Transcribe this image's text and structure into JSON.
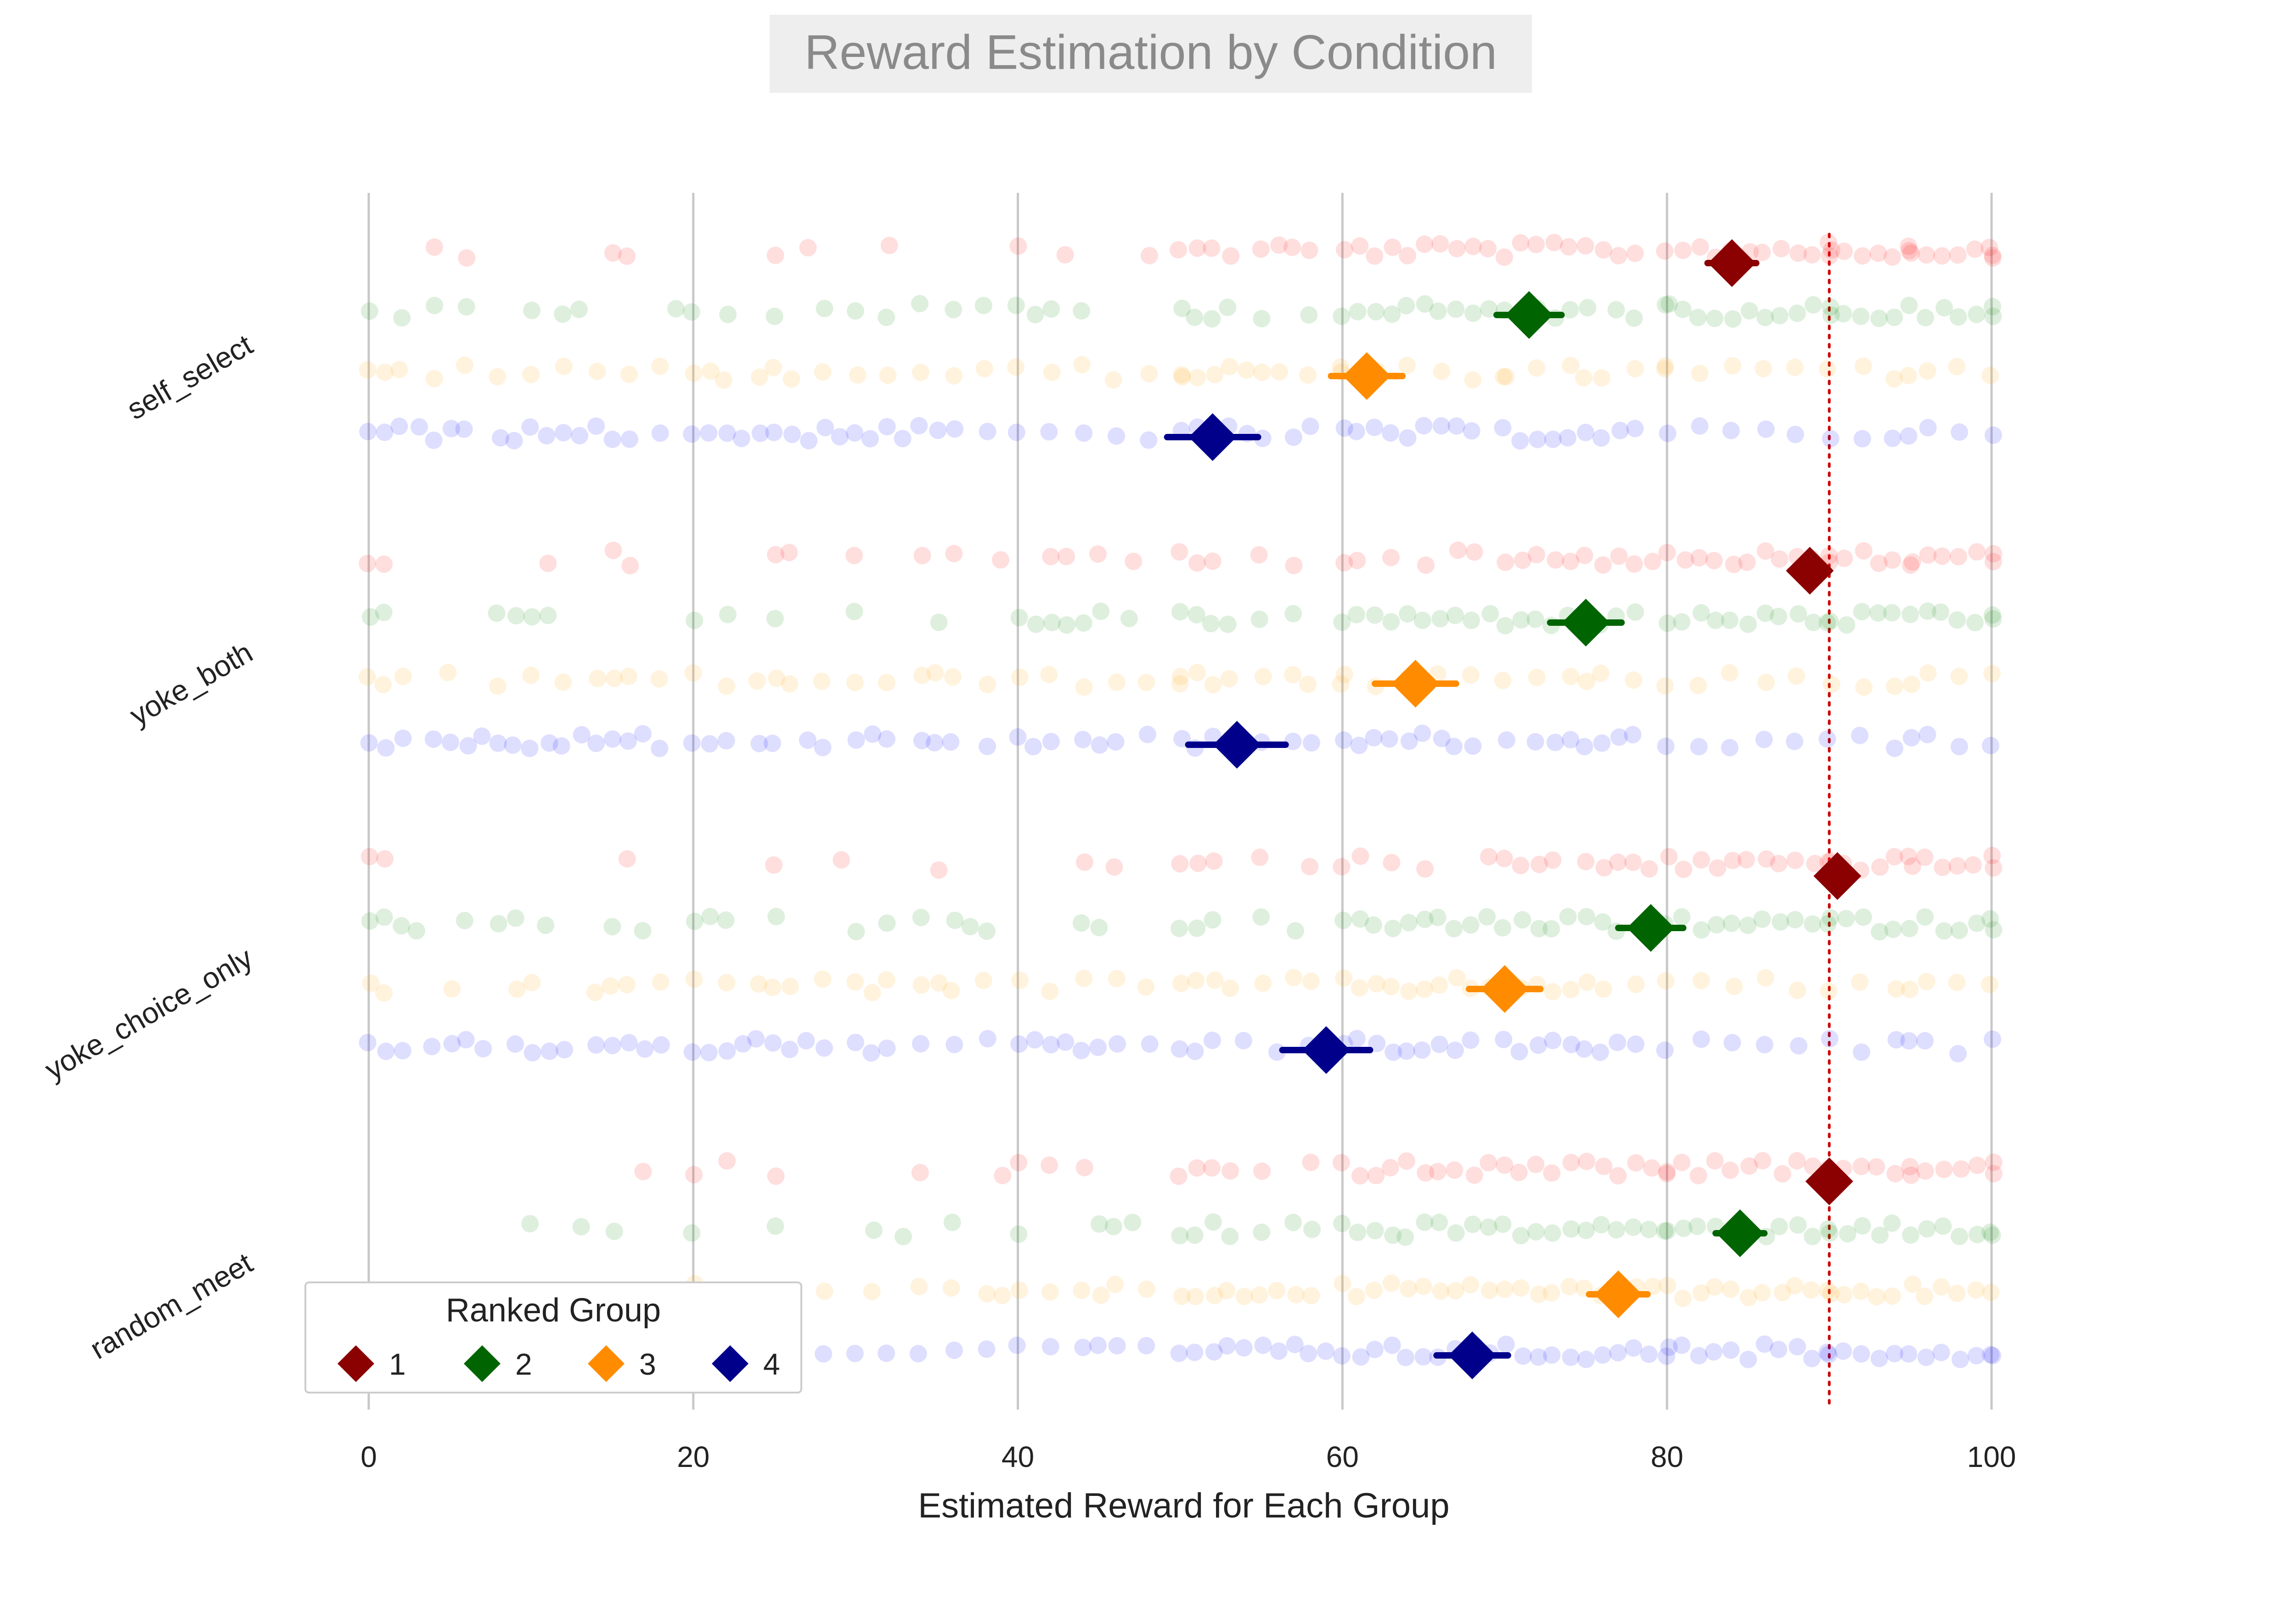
{
  "chart_data": {
    "type": "scatter",
    "title": "Reward Estimation by Condition",
    "xlabel": "Estimated Reward for Each Group",
    "ylabel": "",
    "xlim": [
      0,
      100
    ],
    "xticks": [
      0,
      20,
      40,
      60,
      80,
      100
    ],
    "grid": "vertical",
    "reference_line": {
      "x": 90,
      "color": "#cc0000",
      "style": "dotted"
    },
    "conditions": [
      "self_select",
      "yoke_both",
      "yoke_choice_only",
      "random_meet"
    ],
    "legend": {
      "title": "Ranked Group",
      "placement": "bottom-left",
      "entries": [
        {
          "label": "1",
          "color": "#8b0000"
        },
        {
          "label": "2",
          "color": "#006400"
        },
        {
          "label": "3",
          "color": "#ff8c00"
        },
        {
          "label": "4",
          "color": "#00008b"
        }
      ]
    },
    "point_colors": [
      "#ff0000",
      "#008000",
      "#ffa500",
      "#0000ff"
    ],
    "series": [
      {
        "group": "1",
        "means": [
          84.0,
          88.8,
          90.5,
          90.0
        ],
        "ci_halfwidth": [
          1.5,
          1.2,
          1.0,
          1.0
        ]
      },
      {
        "group": "2",
        "means": [
          71.5,
          75.0,
          79.0,
          84.5
        ],
        "ci_halfwidth": [
          2.0,
          2.2,
          2.0,
          1.5
        ]
      },
      {
        "group": "3",
        "means": [
          61.5,
          64.5,
          70.0,
          77.0
        ],
        "ci_halfwidth": [
          2.2,
          2.5,
          2.2,
          1.8
        ]
      },
      {
        "group": "4",
        "means": [
          52.0,
          53.5,
          59.0,
          68.0
        ],
        "ci_halfwidth": [
          2.8,
          3.0,
          2.7,
          2.2
        ]
      }
    ],
    "raw_points": {
      "self_select": {
        "1": [
          4,
          6,
          15,
          16,
          25,
          27,
          32,
          40,
          43,
          48,
          50,
          51,
          52,
          53,
          55,
          56,
          57,
          58,
          60,
          61,
          62,
          63,
          64,
          65,
          66,
          67,
          68,
          69,
          70,
          71,
          72,
          73,
          74,
          75,
          76,
          77,
          78,
          80,
          81,
          82,
          83,
          84,
          85,
          86,
          87,
          88,
          89,
          90,
          91,
          92,
          93,
          94,
          95,
          96,
          97,
          98,
          99,
          100,
          100,
          100,
          90,
          90,
          95,
          95
        ],
        "2": [
          0,
          2,
          4,
          6,
          10,
          12,
          13,
          19,
          20,
          22,
          25,
          28,
          30,
          32,
          34,
          36,
          38,
          40,
          41,
          42,
          44,
          50,
          51,
          52,
          53,
          55,
          58,
          60,
          61,
          62,
          63,
          64,
          65,
          66,
          67,
          68,
          69,
          70,
          72,
          73,
          74,
          75,
          77,
          78,
          80,
          81,
          82,
          83,
          84,
          85,
          86,
          87,
          88,
          89,
          90,
          91,
          92,
          93,
          94,
          95,
          96,
          97,
          98,
          99,
          100,
          100,
          90,
          80
        ],
        "3": [
          0,
          1,
          2,
          4,
          6,
          8,
          10,
          12,
          14,
          16,
          18,
          20,
          21,
          22,
          24,
          25,
          26,
          28,
          30,
          32,
          34,
          36,
          38,
          40,
          42,
          44,
          46,
          48,
          50,
          51,
          52,
          53,
          54,
          55,
          56,
          58,
          60,
          62,
          64,
          66,
          68,
          70,
          72,
          74,
          75,
          76,
          78,
          80,
          82,
          84,
          86,
          88,
          90,
          92,
          94,
          95,
          96,
          98,
          100,
          50,
          60,
          70,
          80
        ],
        "4": [
          0,
          1,
          2,
          3,
          4,
          5,
          6,
          8,
          9,
          10,
          11,
          12,
          13,
          14,
          15,
          16,
          18,
          20,
          21,
          22,
          23,
          24,
          25,
          26,
          27,
          28,
          29,
          30,
          31,
          32,
          33,
          34,
          35,
          36,
          38,
          40,
          42,
          44,
          46,
          48,
          50,
          51,
          52,
          53,
          54,
          55,
          57,
          58,
          60,
          61,
          62,
          63,
          64,
          65,
          66,
          67,
          68,
          70,
          71,
          72,
          73,
          74,
          75,
          76,
          77,
          78,
          80,
          82,
          84,
          86,
          88,
          90,
          92,
          94,
          95,
          96,
          98,
          100
        ]
      },
      "yoke_both": {
        "1": [
          0,
          1,
          11,
          15,
          16,
          25,
          26,
          30,
          34,
          36,
          39,
          42,
          43,
          45,
          47,
          50,
          51,
          52,
          55,
          57,
          60,
          61,
          63,
          65,
          67,
          68,
          70,
          71,
          72,
          73,
          74,
          75,
          76,
          77,
          78,
          79,
          80,
          81,
          82,
          83,
          84,
          85,
          86,
          87,
          88,
          89,
          90,
          91,
          92,
          93,
          94,
          95,
          96,
          97,
          98,
          99,
          100,
          100,
          90,
          95
        ],
        "2": [
          0,
          1,
          8,
          9,
          10,
          11,
          20,
          22,
          25,
          30,
          35,
          40,
          41,
          42,
          43,
          44,
          45,
          47,
          50,
          51,
          52,
          53,
          55,
          57,
          60,
          61,
          62,
          63,
          64,
          65,
          66,
          67,
          68,
          69,
          70,
          71,
          72,
          73,
          74,
          76,
          77,
          78,
          80,
          81,
          82,
          83,
          84,
          85,
          86,
          87,
          88,
          89,
          90,
          91,
          92,
          93,
          94,
          95,
          96,
          97,
          98,
          99,
          100,
          100,
          90
        ],
        "3": [
          0,
          1,
          2,
          5,
          8,
          10,
          12,
          14,
          15,
          16,
          18,
          20,
          22,
          24,
          25,
          26,
          28,
          30,
          32,
          34,
          35,
          36,
          38,
          40,
          42,
          44,
          46,
          48,
          50,
          51,
          52,
          53,
          55,
          57,
          58,
          60,
          62,
          64,
          66,
          68,
          70,
          72,
          74,
          75,
          76,
          78,
          80,
          82,
          84,
          86,
          88,
          90,
          92,
          94,
          95,
          96,
          98,
          100,
          50,
          60
        ],
        "4": [
          0,
          1,
          2,
          4,
          5,
          6,
          7,
          8,
          9,
          10,
          11,
          12,
          13,
          14,
          15,
          16,
          17,
          18,
          20,
          21,
          22,
          24,
          25,
          27,
          28,
          30,
          31,
          32,
          34,
          35,
          36,
          38,
          40,
          41,
          42,
          44,
          45,
          46,
          48,
          50,
          51,
          52,
          53,
          55,
          57,
          58,
          60,
          61,
          62,
          63,
          64,
          65,
          66,
          67,
          68,
          70,
          72,
          73,
          74,
          75,
          76,
          77,
          78,
          80,
          82,
          84,
          86,
          88,
          90,
          92,
          94,
          95,
          96,
          98,
          100
        ]
      },
      "yoke_choice_only": {
        "1": [
          0,
          1,
          16,
          25,
          29,
          35,
          44,
          46,
          50,
          51,
          52,
          55,
          58,
          60,
          61,
          63,
          65,
          69,
          70,
          71,
          72,
          73,
          75,
          76,
          77,
          78,
          79,
          80,
          81,
          82,
          83,
          84,
          85,
          86,
          87,
          88,
          89,
          90,
          91,
          92,
          93,
          94,
          95,
          96,
          97,
          98,
          99,
          100,
          100,
          90,
          95
        ],
        "2": [
          0,
          1,
          2,
          3,
          6,
          8,
          9,
          11,
          15,
          17,
          20,
          21,
          22,
          25,
          30,
          32,
          34,
          36,
          37,
          38,
          44,
          45,
          50,
          51,
          52,
          55,
          57,
          60,
          61,
          62,
          63,
          64,
          65,
          66,
          67,
          68,
          69,
          70,
          71,
          72,
          73,
          74,
          75,
          76,
          77,
          80,
          81,
          82,
          83,
          84,
          85,
          86,
          87,
          88,
          89,
          90,
          91,
          92,
          93,
          94,
          95,
          96,
          97,
          98,
          99,
          100,
          100,
          90
        ],
        "3": [
          0,
          1,
          5,
          9,
          10,
          14,
          15,
          16,
          18,
          20,
          22,
          24,
          25,
          26,
          28,
          30,
          31,
          32,
          34,
          35,
          36,
          38,
          40,
          42,
          44,
          46,
          48,
          50,
          51,
          52,
          53,
          55,
          57,
          58,
          60,
          61,
          62,
          63,
          64,
          65,
          66,
          67,
          68,
          69,
          71,
          72,
          73,
          74,
          75,
          76,
          78,
          80,
          82,
          84,
          86,
          88,
          90,
          92,
          94,
          95,
          96,
          98,
          100
        ],
        "4": [
          0,
          1,
          2,
          4,
          5,
          6,
          7,
          9,
          10,
          11,
          12,
          14,
          15,
          16,
          17,
          18,
          20,
          21,
          22,
          23,
          24,
          25,
          26,
          27,
          28,
          30,
          31,
          32,
          34,
          36,
          38,
          40,
          41,
          42,
          43,
          44,
          45,
          46,
          48,
          50,
          51,
          52,
          54,
          56,
          58,
          60,
          61,
          62,
          63,
          64,
          65,
          66,
          67,
          68,
          70,
          71,
          72,
          73,
          74,
          75,
          76,
          77,
          78,
          80,
          82,
          84,
          86,
          88,
          90,
          92,
          94,
          95,
          96,
          98,
          100
        ]
      },
      "random_meet": {
        "1": [
          17,
          20,
          22,
          25,
          34,
          39,
          40,
          42,
          44,
          50,
          51,
          52,
          53,
          55,
          58,
          60,
          61,
          62,
          63,
          64,
          65,
          66,
          67,
          68,
          69,
          70,
          71,
          72,
          73,
          74,
          75,
          76,
          77,
          78,
          79,
          80,
          81,
          82,
          83,
          84,
          85,
          86,
          87,
          88,
          89,
          90,
          91,
          92,
          93,
          94,
          95,
          96,
          97,
          98,
          99,
          100,
          100,
          90,
          95,
          80
        ],
        "2": [
          10,
          13,
          15,
          20,
          25,
          31,
          33,
          36,
          40,
          45,
          46,
          47,
          50,
          51,
          52,
          53,
          55,
          57,
          58,
          60,
          61,
          62,
          63,
          64,
          65,
          66,
          67,
          68,
          69,
          70,
          71,
          72,
          73,
          74,
          75,
          76,
          77,
          78,
          79,
          80,
          81,
          82,
          83,
          85,
          86,
          87,
          88,
          89,
          90,
          91,
          92,
          93,
          94,
          95,
          96,
          97,
          98,
          99,
          100,
          100,
          90,
          80
        ],
        "3": [
          0,
          20,
          25,
          28,
          31,
          34,
          36,
          38,
          39,
          40,
          42,
          44,
          45,
          46,
          48,
          50,
          51,
          52,
          53,
          54,
          55,
          56,
          57,
          58,
          60,
          61,
          62,
          63,
          64,
          65,
          66,
          67,
          68,
          69,
          70,
          71,
          72,
          73,
          74,
          75,
          76,
          78,
          79,
          80,
          81,
          82,
          83,
          84,
          85,
          86,
          87,
          88,
          89,
          90,
          91,
          92,
          93,
          94,
          95,
          96,
          97,
          98,
          99,
          100,
          90
        ],
        "4": [
          0,
          1,
          3,
          5,
          8,
          10,
          12,
          15,
          16,
          18,
          20,
          22,
          24,
          25,
          26,
          28,
          30,
          32,
          34,
          36,
          38,
          40,
          42,
          44,
          45,
          46,
          48,
          50,
          51,
          52,
          53,
          54,
          55,
          56,
          57,
          58,
          59,
          60,
          61,
          62,
          63,
          64,
          65,
          66,
          67,
          68,
          69,
          70,
          71,
          72,
          73,
          74,
          75,
          76,
          77,
          78,
          79,
          80,
          81,
          82,
          83,
          84,
          85,
          86,
          87,
          88,
          89,
          90,
          91,
          92,
          93,
          94,
          95,
          96,
          97,
          98,
          99,
          100,
          100,
          90,
          80
        ]
      }
    }
  }
}
